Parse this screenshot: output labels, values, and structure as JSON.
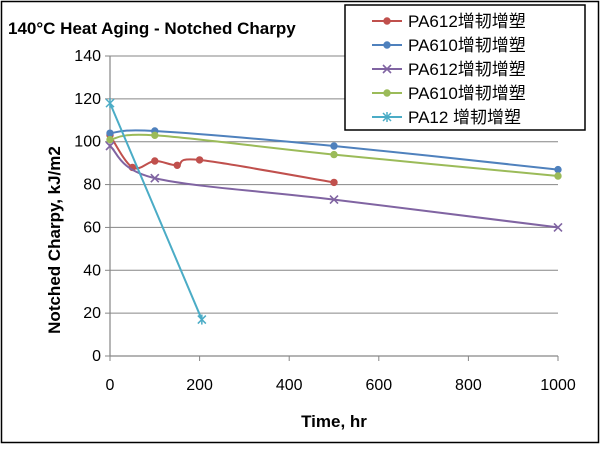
{
  "chart_data": {
    "type": "line",
    "title": "140°C Heat Aging - Notched Charpy",
    "xlabel": "Time, hr",
    "ylabel": "Notched Charpy, kJ/m2",
    "xlim": [
      0,
      1000
    ],
    "ylim": [
      0,
      140
    ],
    "x_ticks": [
      0,
      200,
      400,
      600,
      800,
      1000
    ],
    "y_ticks": [
      0,
      20,
      40,
      60,
      80,
      100,
      120,
      140
    ],
    "grid": "horizontal",
    "legend_position": "top-right",
    "series": [
      {
        "name": "PA612增韧增塑",
        "color": "#C0504D",
        "marker": "circle",
        "smooth": true,
        "points": [
          [
            0,
            103
          ],
          [
            50,
            88
          ],
          [
            100,
            91
          ],
          [
            150,
            89
          ],
          [
            200,
            91.5
          ],
          [
            500,
            81
          ]
        ]
      },
      {
        "name": "PA610增韧增塑",
        "color": "#4F81BD",
        "marker": "circle",
        "smooth": true,
        "points": [
          [
            0,
            104
          ],
          [
            100,
            105
          ],
          [
            500,
            98
          ],
          [
            1000,
            87
          ]
        ]
      },
      {
        "name": "PA612增韧增塑",
        "color": "#8064A2",
        "marker": "x",
        "smooth": true,
        "points": [
          [
            0,
            98
          ],
          [
            100,
            83
          ],
          [
            500,
            73
          ],
          [
            1000,
            60
          ]
        ]
      },
      {
        "name": "PA610增韧增塑",
        "color": "#9BBB59",
        "marker": "circle",
        "smooth": true,
        "points": [
          [
            0,
            101
          ],
          [
            100,
            103
          ],
          [
            500,
            94
          ],
          [
            1000,
            84
          ]
        ]
      },
      {
        "name": "PA12 增韧增塑",
        "color": "#4BACC6",
        "marker": "star",
        "smooth": false,
        "points": [
          [
            0,
            118
          ],
          [
            205,
            17
          ]
        ]
      }
    ]
  }
}
